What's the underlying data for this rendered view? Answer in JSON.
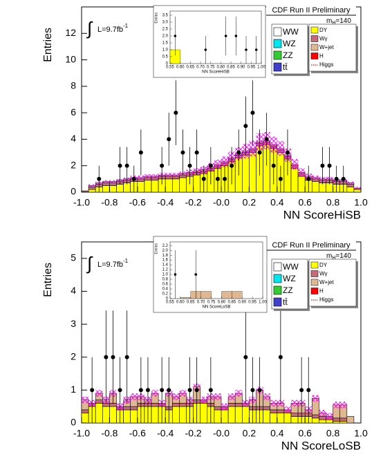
{
  "chart_data": [
    {
      "type": "histogram",
      "xlabel": "NN ScoreHiSB",
      "ylabel": "Entries",
      "header": "CDF Run II Preliminary",
      "mass_label": {
        "symbol": "m",
        "subscript": "H",
        "text": "=140"
      },
      "lumi": {
        "integral": "∫",
        "text": "L=9.7fb",
        "sup": "-1"
      },
      "xlim": [
        -1,
        1
      ],
      "ylim": [
        0,
        14
      ],
      "xticks": [
        {
          "value": -1,
          "label": "-1.0"
        },
        -0.8,
        -0.6,
        -0.4,
        -0.2,
        {
          "value": 0,
          "label": "-0.0"
        },
        0.2,
        0.4,
        0.6,
        0.8,
        {
          "value": 1,
          "label": "1.0"
        }
      ],
      "yticks": [
        0,
        2,
        4,
        6,
        8,
        10,
        12
      ],
      "bins": [
        -1,
        -0.95,
        -0.9,
        -0.85,
        -0.8,
        -0.75,
        -0.7,
        -0.65,
        -0.6,
        -0.55,
        -0.5,
        -0.45,
        -0.4,
        -0.35,
        -0.3,
        -0.25,
        -0.2,
        -0.15,
        -0.1,
        -0.05,
        0,
        0.05,
        0.1,
        0.15,
        0.2,
        0.25,
        0.3,
        0.35,
        0.4,
        0.45,
        0.5,
        0.55,
        0.6,
        0.65,
        0.7,
        0.75,
        0.8,
        0.85,
        0.9,
        0.95,
        1
      ],
      "series": [
        {
          "name": "DY",
          "color": "#ffff00",
          "values": [
            0,
            0.2,
            0.4,
            0.5,
            0.5,
            0.6,
            0.7,
            0.8,
            0.8,
            0.9,
            0.9,
            1.0,
            1.0,
            1.0,
            1.1,
            1.2,
            1.3,
            1.4,
            1.6,
            1.8,
            2.0,
            2.3,
            2.6,
            2.8,
            3.0,
            3.5,
            3.6,
            3.3,
            3.0,
            2.5,
            1.8,
            1.2,
            0.9,
            0.8,
            0.7,
            0.7,
            0.6,
            0.6,
            0.4,
            0.2
          ]
        },
        {
          "name": "Wγ",
          "color": "#c46a78",
          "values": [
            0.1,
            0.2,
            0.2,
            0.2,
            0.2,
            0.2,
            0.2,
            0.2,
            0.2,
            0.2,
            0.2,
            0.2,
            0.2,
            0.2,
            0.2,
            0.2,
            0.2,
            0.2,
            0.2,
            0.2,
            0.2,
            0.2,
            0.2,
            0.2,
            0.2,
            0.2,
            0.2,
            0.2,
            0.2,
            0.2,
            0.2,
            0.2,
            0.2,
            0.2,
            0.2,
            0.2,
            0.2,
            0.2,
            0.2,
            0.1
          ]
        },
        {
          "name": "W+jet",
          "color": "#ddb893",
          "values": [
            0,
            0.1,
            0.1,
            0.1,
            0.1,
            0.1,
            0.1,
            0.1,
            0.1,
            0.1,
            0.1,
            0.1,
            0.1,
            0.1,
            0.1,
            0.1,
            0.1,
            0.1,
            0.1,
            0.1,
            0.1,
            0.1,
            0.1,
            0.1,
            0.1,
            0.1,
            0.1,
            0.1,
            0.1,
            0.1,
            0.1,
            0.1,
            0.1,
            0.1,
            0.1,
            0.1,
            0.1,
            0.1,
            0.1,
            0
          ]
        }
      ],
      "uncertainty": {
        "color": "#ff00ff",
        "values": [
          0,
          0.1,
          0.1,
          0.1,
          0.1,
          0.1,
          0.1,
          0.15,
          0.15,
          0.15,
          0.15,
          0.15,
          0.15,
          0.15,
          0.15,
          0.2,
          0.2,
          0.25,
          0.3,
          0.35,
          0.4,
          0.45,
          0.5,
          0.55,
          0.6,
          0.65,
          0.65,
          0.6,
          0.55,
          0.5,
          0.4,
          0.3,
          0.2,
          0.15,
          0.15,
          0.15,
          0.1,
          0.1,
          0.1,
          0.1
        ]
      },
      "points": {
        "color": "#000000",
        "x": [
          -0.875,
          -0.725,
          -0.675,
          -0.625,
          -0.575,
          -0.425,
          -0.375,
          -0.325,
          -0.275,
          -0.225,
          -0.175,
          -0.125,
          -0.075,
          -0.025,
          0.025,
          0.075,
          0.125,
          0.175,
          0.225,
          0.275,
          0.325,
          0.375,
          0.425,
          0.475,
          0.625,
          0.725,
          0.775,
          0.825,
          0.875
        ],
        "y": [
          1,
          2,
          2,
          1,
          3,
          2,
          4,
          6,
          3,
          2,
          3,
          1,
          2,
          1,
          1,
          2,
          3,
          5,
          6,
          3,
          4,
          2,
          1,
          3,
          1,
          2,
          2,
          1,
          1
        ]
      },
      "legend_extra": [
        {
          "name": "WW",
          "color": "#ffffff",
          "column": "left"
        },
        {
          "name": "WZ",
          "color": "#00e5ee",
          "column": "left"
        },
        {
          "name": "ZZ",
          "color": "#33cc33",
          "column": "left"
        },
        {
          "name": "tt̄",
          "color": "#4040cc",
          "column": "left"
        },
        {
          "name": "H",
          "color": "#ff0000",
          "column": "right"
        },
        {
          "name": "Higgs",
          "color": "#ff0000",
          "column": "right",
          "style": "line"
        }
      ],
      "inset": {
        "type": "histogram",
        "xlabel": "NN ScoreHiSB",
        "ylabel": "Entries",
        "xlim": [
          0.55,
          1
        ],
        "ylim": [
          0,
          3.8
        ],
        "xticks": [
          0.55,
          {
            "value": 0.6,
            "label": "0.60"
          },
          0.65,
          {
            "value": 0.7,
            "label": "0.70"
          },
          0.75,
          {
            "value": 0.8,
            "label": "0.80"
          },
          0.85,
          {
            "value": 0.9,
            "label": "0.90"
          },
          0.95,
          {
            "value": 1,
            "label": "1.00"
          }
        ],
        "yticks": [
          0,
          0.5,
          {
            "value": 1,
            "label": "1.0"
          },
          1.5,
          {
            "value": 2,
            "label": "2.0"
          },
          2.5,
          {
            "value": 3,
            "label": "3.0"
          },
          3.5
        ],
        "bins": [
          0.55,
          0.6,
          0.65,
          0.7,
          0.75,
          0.8,
          0.85,
          0.9,
          0.95,
          1
        ],
        "series": [
          {
            "name": "DY",
            "color": "#ffff00",
            "values": [
              1.0,
              0,
              0,
              0,
              0,
              0,
              0,
              0,
              0
            ]
          }
        ],
        "points": {
          "color": "#000000",
          "x": [
            0.575,
            0.725,
            0.825,
            0.875,
            0.925,
            0.975
          ],
          "y": [
            2,
            1,
            2,
            2,
            1,
            1
          ]
        }
      }
    },
    {
      "type": "histogram",
      "xlabel": "NN ScoreLoSB",
      "ylabel": "Entries",
      "header": "CDF Run II Preliminary",
      "mass_label": {
        "symbol": "m",
        "subscript": "H",
        "text": "=140"
      },
      "lumi": {
        "integral": "∫",
        "text": "L=9.7fb",
        "sup": "-1"
      },
      "xlim": [
        -1,
        1
      ],
      "ylim": [
        0,
        5.5
      ],
      "xticks": [
        {
          "value": -1,
          "label": "-1.0"
        },
        -0.8,
        -0.6,
        -0.4,
        -0.2,
        {
          "value": 0,
          "label": "-0.0"
        },
        0.2,
        0.4,
        0.6,
        0.8,
        {
          "value": 1,
          "label": "1.0"
        }
      ],
      "yticks": [
        0,
        1,
        2,
        3,
        4,
        5
      ],
      "bins": [
        -1,
        -0.95,
        -0.9,
        -0.85,
        -0.8,
        -0.75,
        -0.7,
        -0.65,
        -0.6,
        -0.55,
        -0.5,
        -0.45,
        -0.4,
        -0.35,
        -0.3,
        -0.25,
        -0.2,
        -0.15,
        -0.1,
        -0.05,
        0,
        0.05,
        0.1,
        0.15,
        0.2,
        0.25,
        0.3,
        0.35,
        0.4,
        0.45,
        0.5,
        0.55,
        0.6,
        0.65,
        0.7,
        0.75,
        0.8,
        0.85,
        0.9,
        0.95,
        1
      ],
      "series": [
        {
          "name": "DY",
          "color": "#ffff00",
          "values": [
            0.3,
            0.5,
            0.6,
            0.5,
            0.5,
            0.4,
            0.4,
            0.4,
            0.5,
            0.5,
            0.5,
            0.5,
            0.4,
            0.5,
            0.5,
            0.5,
            0.6,
            0.6,
            0.5,
            0.4,
            0.4,
            0.5,
            0.5,
            0.5,
            0.4,
            0.4,
            0.4,
            0.3,
            0.3,
            0.3,
            0.2,
            0.2,
            0.2,
            0.15,
            0.1,
            0.1,
            0.05,
            0.05,
            0,
            0
          ]
        },
        {
          "name": "Wγ",
          "color": "#c46a78",
          "values": [
            0.1,
            0.1,
            0.1,
            0.1,
            0.1,
            0.1,
            0.1,
            0.1,
            0.1,
            0.1,
            0.1,
            0.1,
            0.1,
            0.1,
            0.1,
            0.1,
            0.1,
            0.1,
            0.1,
            0.1,
            0.1,
            0.1,
            0.1,
            0.1,
            0.1,
            0.1,
            0.1,
            0.1,
            0.1,
            0.1,
            0.1,
            0.1,
            0.1,
            0.1,
            0.1,
            0.1,
            0.1,
            0.1,
            0,
            0
          ]
        },
        {
          "name": "W+jet",
          "color": "#ddb893",
          "values": [
            0.3,
            0,
            0.2,
            0.1,
            0.3,
            0,
            0.2,
            0.3,
            0.2,
            0.1,
            0.3,
            0,
            0.4,
            0.2,
            0.3,
            0.1,
            0.4,
            0,
            0.2,
            0.3,
            0,
            0.2,
            0.3,
            0,
            0.2,
            0.5,
            0.3,
            0.2,
            0.2,
            0,
            0.3,
            0.3,
            0.1,
            0.5,
            0.1,
            0,
            0.4,
            0.4,
            0.2,
            0
          ]
        }
      ],
      "uncertainty": {
        "color": "#ff00ff",
        "values": [
          0.1,
          0.1,
          0.1,
          0.1,
          0.1,
          0.1,
          0.1,
          0.1,
          0.1,
          0.1,
          0.1,
          0.1,
          0.1,
          0.1,
          0.1,
          0.1,
          0.1,
          0.1,
          0.1,
          0.1,
          0.1,
          0.1,
          0.1,
          0.1,
          0.1,
          0.1,
          0.1,
          0.1,
          0.1,
          0.1,
          0.1,
          0.1,
          0.1,
          0.1,
          0.1,
          0.1,
          0.1,
          0.1,
          0,
          0
        ]
      },
      "points": {
        "color": "#000000",
        "x": [
          -0.925,
          -0.825,
          -0.775,
          -0.725,
          -0.675,
          -0.575,
          -0.525,
          -0.425,
          -0.375,
          -0.225,
          -0.175,
          -0.075,
          0.175,
          0.225,
          0.275,
          0.425,
          0.575,
          0.625
        ],
        "y": [
          1,
          2,
          2,
          1,
          2,
          1,
          1,
          1,
          1,
          1,
          1,
          1,
          2,
          1,
          1,
          2,
          1,
          1
        ]
      },
      "legend_extra": [
        {
          "name": "WW",
          "color": "#ffffff",
          "column": "left"
        },
        {
          "name": "WZ",
          "color": "#00e5ee",
          "column": "left"
        },
        {
          "name": "ZZ",
          "color": "#33cc33",
          "column": "left"
        },
        {
          "name": "tt̄",
          "color": "#4040cc",
          "column": "left"
        },
        {
          "name": "H",
          "color": "#ff0000",
          "column": "right"
        },
        {
          "name": "Higgs",
          "color": "#ff0000",
          "column": "right",
          "style": "line"
        }
      ],
      "inset": {
        "type": "histogram",
        "xlabel": "NN ScoreLoSB",
        "ylabel": "Entries",
        "xlim": [
          0.55,
          1
        ],
        "ylim": [
          0,
          2.35
        ],
        "xticks": [
          0.55,
          {
            "value": 0.6,
            "label": "0.60"
          },
          0.65,
          {
            "value": 0.7,
            "label": "0.70"
          },
          0.75,
          {
            "value": 0.8,
            "label": "0.80"
          },
          0.85,
          {
            "value": 0.9,
            "label": "0.90"
          },
          0.95,
          {
            "value": 1,
            "label": "1.00"
          }
        ],
        "yticks": [
          0,
          0.2,
          0.4,
          0.6,
          0.8,
          {
            "value": 1,
            "label": "1.0"
          },
          1.2,
          1.4,
          1.6,
          1.8,
          {
            "value": 2,
            "label": "2.0"
          },
          2.2
        ],
        "bins": [
          0.55,
          0.6,
          0.65,
          0.7,
          0.75,
          0.8,
          0.85,
          0.9,
          0.95,
          1
        ],
        "series": [
          {
            "name": "W+jet",
            "color": "#ddb893",
            "values": [
              0,
              0.05,
              0.3,
              0.3,
              0,
              0.3,
              0.3,
              0,
              0
            ]
          }
        ],
        "points": {
          "color": "#000000",
          "x": [
            0.575,
            0.675
          ],
          "y": [
            1,
            1
          ]
        }
      }
    }
  ]
}
